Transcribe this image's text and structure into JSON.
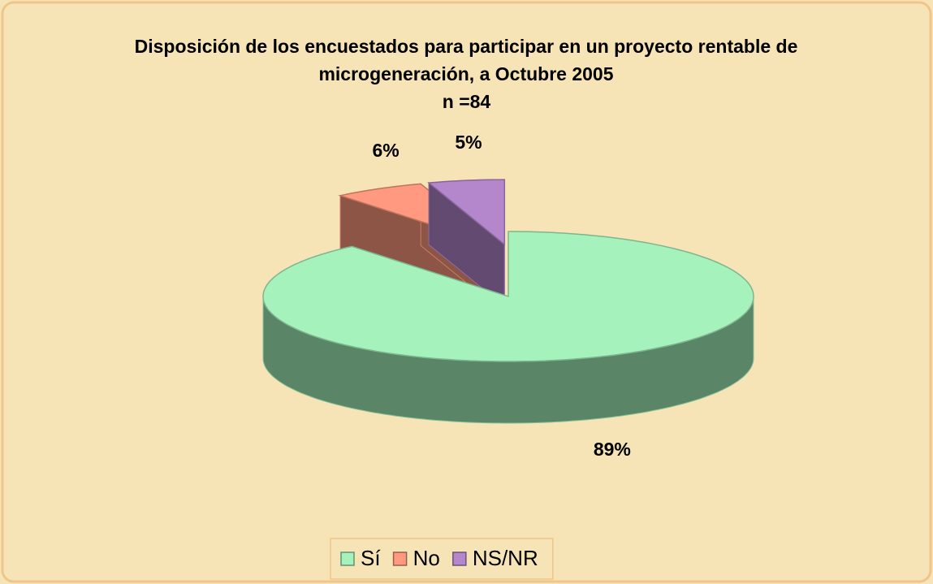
{
  "chart_data": {
    "type": "pie",
    "title": "Disposición de los encuestados para participar en un proyecto rentable de microgeneración, a Octubre 2005",
    "subtitle": "n =84",
    "categories": [
      "Sí",
      "No",
      "NS/NR"
    ],
    "values": [
      89,
      6,
      5
    ],
    "value_labels": [
      "89%",
      "6%",
      "5%"
    ],
    "colors": [
      "#a6f2bc",
      "#ff9a80",
      "#b487cc"
    ],
    "legend": "bottom"
  }
}
